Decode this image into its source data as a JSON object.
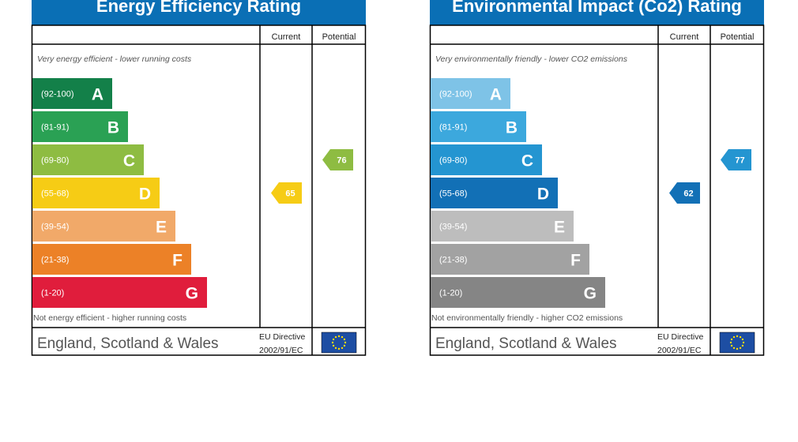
{
  "chart_data": [
    {
      "type": "bar",
      "title": "Energy Efficiency Rating",
      "column_current": "Current",
      "column_potential": "Potential",
      "top_note": "Very energy efficient - lower running costs",
      "bottom_note": "Not energy efficient - higher running costs",
      "footer_region": "England, Scotland & Wales",
      "footer_directive_line1": "EU Directive",
      "footer_directive_line2": "2002/91/EC",
      "bands": [
        {
          "range": "(92-100)",
          "letter": "A",
          "color": "#138049"
        },
        {
          "range": "(81-91)",
          "letter": "B",
          "color": "#2aa154"
        },
        {
          "range": "(69-80)",
          "letter": "C",
          "color": "#8ebc42"
        },
        {
          "range": "(55-68)",
          "letter": "D",
          "color": "#f6cc15"
        },
        {
          "range": "(39-54)",
          "letter": "E",
          "color": "#f1a969"
        },
        {
          "range": "(21-38)",
          "letter": "F",
          "color": "#ec8127"
        },
        {
          "range": "(1-20)",
          "letter": "G",
          "color": "#e01d3c"
        }
      ],
      "current": {
        "value": 65,
        "label": "65",
        "band": "D",
        "color": "#f6cc15"
      },
      "potential": {
        "value": 76,
        "label": "76",
        "band": "C",
        "color": "#8ebc42"
      }
    },
    {
      "type": "bar",
      "title": "Environmental Impact (Co2) Rating",
      "column_current": "Current",
      "column_potential": "Potential",
      "top_note": "Very environmentally friendly - lower CO2 emissions",
      "bottom_note": "Not environmentally friendly - higher CO2 emissions",
      "footer_region": "England, Scotland & Wales",
      "footer_directive_line1": "EU Directive",
      "footer_directive_line2": "2002/91/EC",
      "bands": [
        {
          "range": "(92-100)",
          "letter": "A",
          "color": "#7ec3e7"
        },
        {
          "range": "(81-91)",
          "letter": "B",
          "color": "#3ca8dd"
        },
        {
          "range": "(69-80)",
          "letter": "C",
          "color": "#2495d1"
        },
        {
          "range": "(55-68)",
          "letter": "D",
          "color": "#1270b6"
        },
        {
          "range": "(39-54)",
          "letter": "E",
          "color": "#bdbdbd"
        },
        {
          "range": "(21-38)",
          "letter": "F",
          "color": "#a2a2a2"
        },
        {
          "range": "(1-20)",
          "letter": "G",
          "color": "#858585"
        }
      ],
      "current": {
        "value": 62,
        "label": "62",
        "band": "D",
        "color": "#1270b6"
      },
      "potential": {
        "value": 77,
        "label": "77",
        "band": "C",
        "color": "#2495d1"
      }
    }
  ]
}
